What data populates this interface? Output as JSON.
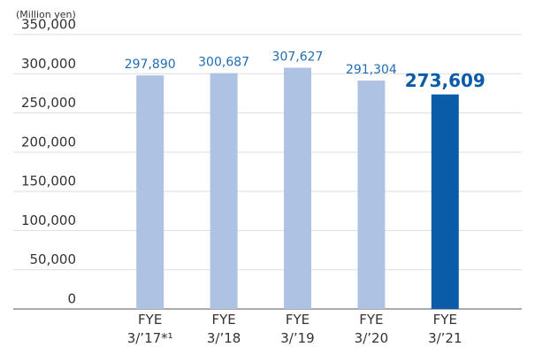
{
  "chart_data": {
    "type": "bar",
    "unit_label": "(Million yen)",
    "categories": [
      "FYE\n3/’17*¹",
      "FYE\n3/’18",
      "FYE\n3/’19",
      "FYE\n3/’20",
      "FYE\n3/’21"
    ],
    "values": [
      297890,
      300687,
      307627,
      291304,
      273609
    ],
    "value_labels": [
      "297,890",
      "300,687",
      "307,627",
      "291,304",
      "273,609"
    ],
    "colors": [
      "#aec3e3",
      "#aec3e3",
      "#aec3e3",
      "#aec3e3",
      "#0a5ca8"
    ],
    "highlight": [
      false,
      false,
      false,
      false,
      true
    ],
    "ylim": [
      0,
      350000
    ],
    "yticks": [
      0,
      {
        "value": 50000,
        "label": "50,000"
      },
      {
        "value": 100000,
        "label": "100,000"
      },
      {
        "value": 150000,
        "label": "150,000"
      },
      {
        "value": 200000,
        "label": "200,000"
      },
      {
        "value": 250000,
        "label": "250,000"
      },
      {
        "value": 300000,
        "label": "300,000"
      },
      {
        "value": 350000,
        "label": "350,000"
      }
    ],
    "grid": true
  }
}
